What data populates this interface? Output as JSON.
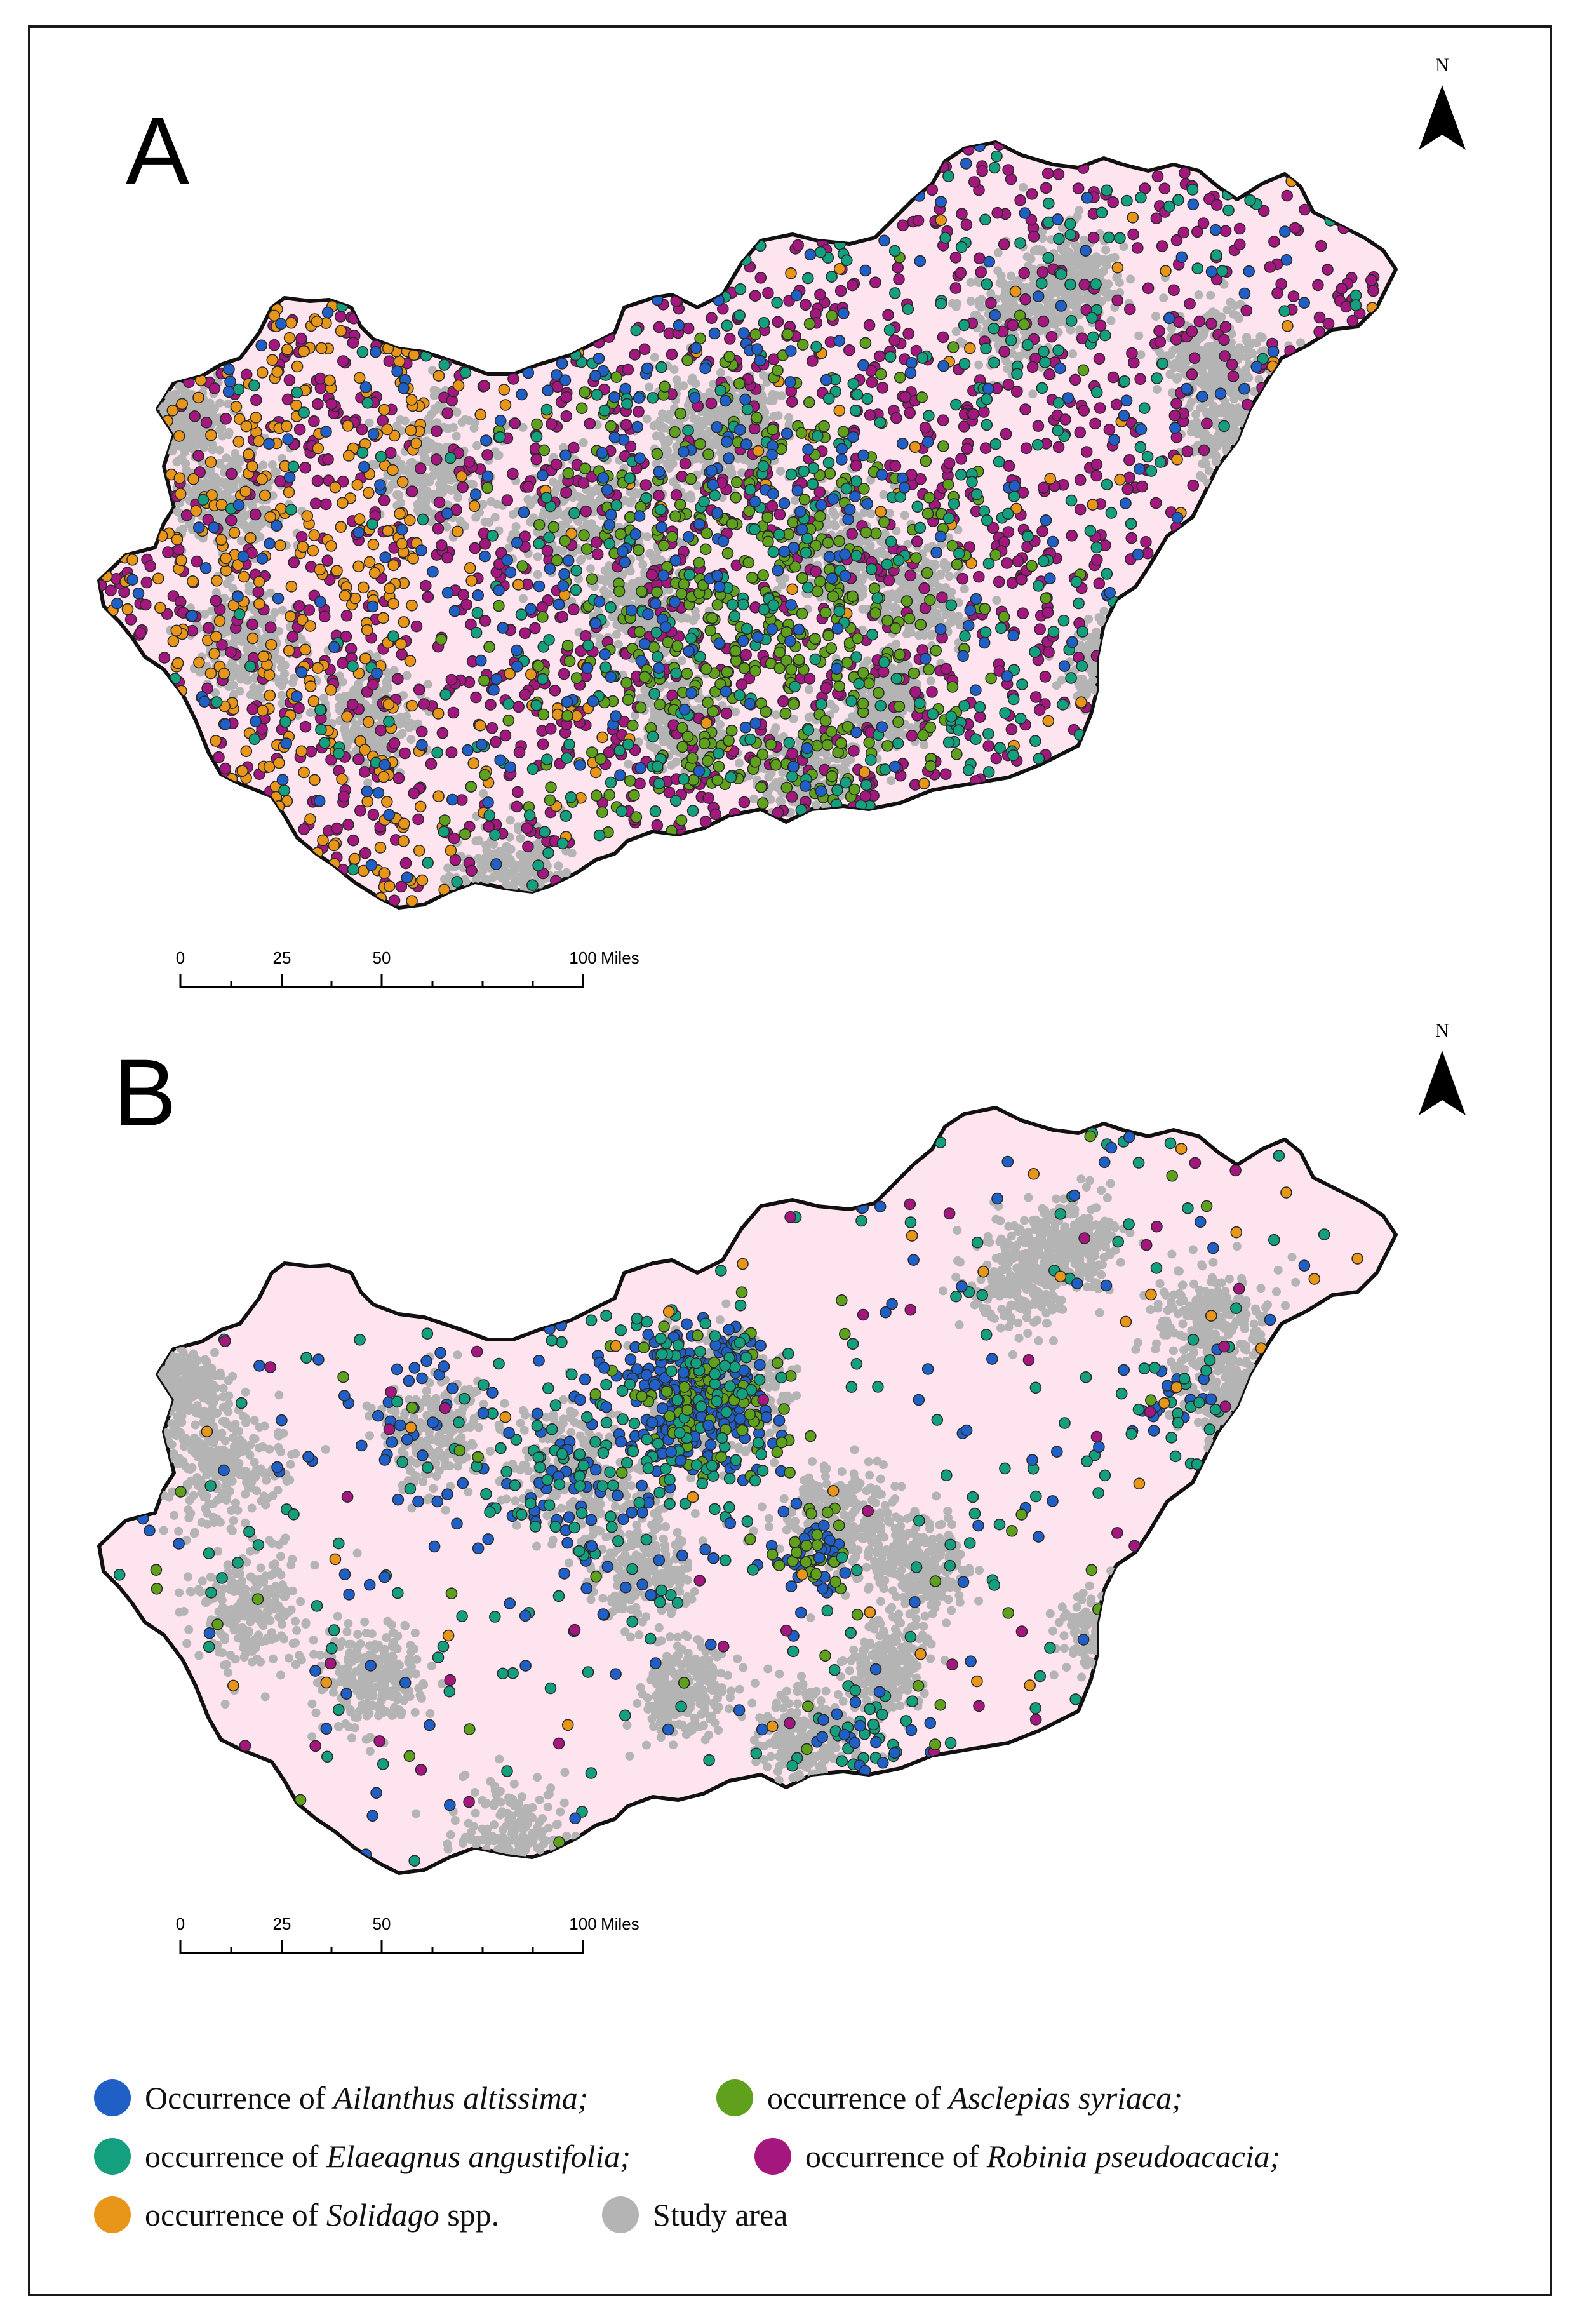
{
  "panels": [
    {
      "letter": "A",
      "north": "N",
      "scale": {
        "ticks": [
          "0",
          "25",
          "50",
          "100"
        ],
        "unit": "Miles"
      }
    },
    {
      "letter": "B",
      "north": "N",
      "scale": {
        "ticks": [
          "0",
          "25",
          "50",
          "100"
        ],
        "unit": "Miles"
      }
    }
  ],
  "colors": {
    "ailanthus": "#1f5fc6",
    "asclepias": "#5fa01c",
    "elaeagnus": "#14a07e",
    "robinia": "#a3177f",
    "solidago": "#e8961a",
    "study": "#b4b4b4",
    "country_fill": "#fde4ef",
    "border": "#111111"
  },
  "legend": [
    {
      "prefix": "Occurrence of ",
      "name": "Ailanthus altissima;",
      "suffix": "",
      "color": "#1f5fc6"
    },
    {
      "prefix": "occurrence of ",
      "name": "Asclepias syriaca;",
      "suffix": "",
      "color": "#5fa01c"
    },
    {
      "prefix": "occurrence of ",
      "name": "Elaeagnus angustifolia;",
      "suffix": "",
      "color": "#14a07e"
    },
    {
      "prefix": "occurrence of ",
      "name": "Robinia pseudoacacia;",
      "suffix": "",
      "color": "#a3177f"
    },
    {
      "prefix": "occurrence of ",
      "name": "Solidago",
      "suffix": " spp.",
      "color": "#e8961a"
    },
    {
      "prefix": "",
      "name": "",
      "suffix": "Study area",
      "color": "#b4b4b4"
    }
  ]
}
